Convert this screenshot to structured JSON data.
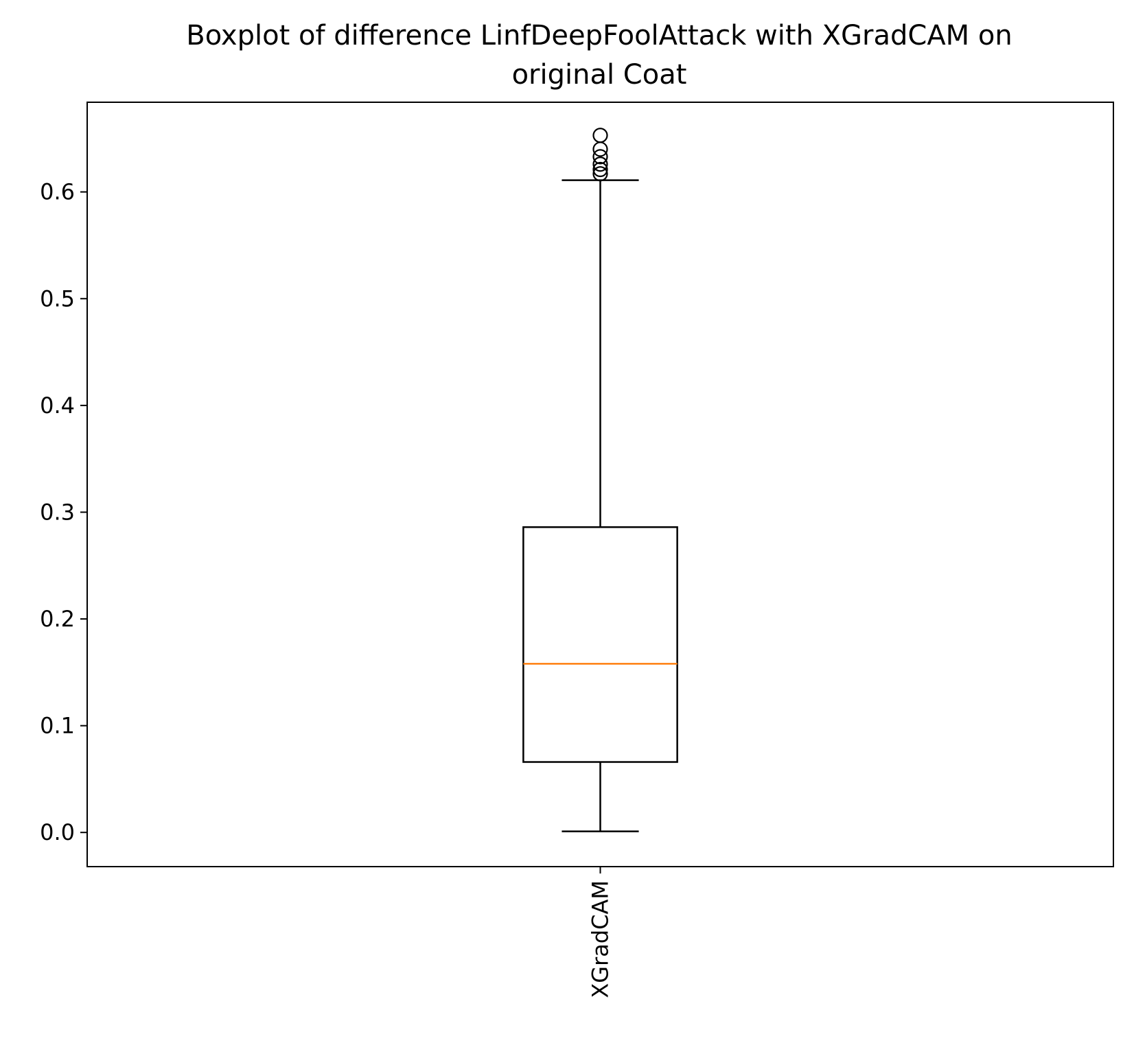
{
  "chart_data": {
    "type": "boxplot",
    "title_lines": [
      "Boxplot of difference LinfDeepFoolAttack with XGradCAM on",
      "original Coat"
    ],
    "xlabel": "",
    "ylabel": "",
    "ylim": [
      -0.032,
      0.684
    ],
    "yticks": [
      0.0,
      0.1,
      0.2,
      0.3,
      0.4,
      0.5,
      0.6
    ],
    "ytick_labels": [
      "0.0",
      "0.1",
      "0.2",
      "0.3",
      "0.4",
      "0.5",
      "0.6"
    ],
    "categories": [
      "XGradCAM"
    ],
    "grid": false,
    "legend": "none",
    "boxes": [
      {
        "label": "XGradCAM",
        "whisker_low": 0.001,
        "q1": 0.066,
        "median": 0.158,
        "q3": 0.286,
        "whisker_high": 0.611,
        "outliers": [
          0.617,
          0.621,
          0.626,
          0.633,
          0.64,
          0.653
        ]
      }
    ],
    "colors": {
      "box": "#000000",
      "median": "#ff7f0e",
      "outlier": "#000000"
    }
  }
}
